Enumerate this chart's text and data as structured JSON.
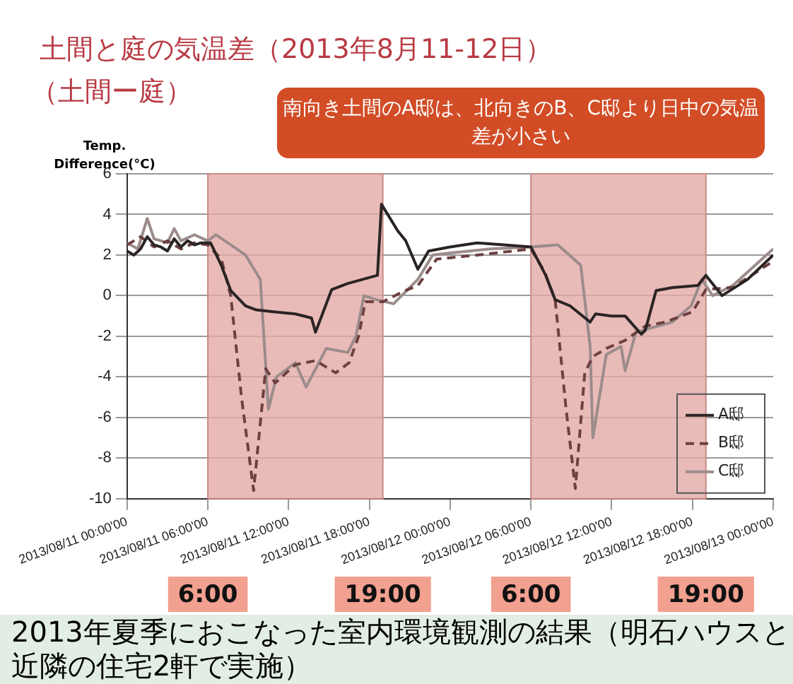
{
  "chart_data": {
    "type": "line",
    "title": "土間と庭の気温差（2013年8月11-12日）",
    "subtitle": "（土間ー庭）",
    "ylabel": "Temp. Difference(°C)",
    "xlim": [
      "2013-08-11T00:00",
      "2013-08-13T00:00"
    ],
    "xticks": [
      {
        "value": "2013-08-11T00:00",
        "label": "2013/08/11 00:00'00"
      },
      {
        "value": "2013-08-11T06:00",
        "label": "2013/08/11 06:00'00"
      },
      {
        "value": "2013-08-11T12:00",
        "label": "2013/08/11 12:00'00"
      },
      {
        "value": "2013-08-11T18:00",
        "label": "2013/08/11 18:00'00"
      },
      {
        "value": "2013-08-12T00:00",
        "label": "2013/08/12 00:00'00"
      },
      {
        "value": "2013-08-12T06:00",
        "label": "2013/08/12 06:00'00"
      },
      {
        "value": "2013-08-12T12:00",
        "label": "2013/08/12 12:00'00"
      },
      {
        "value": "2013-08-12T18:00",
        "label": "2013/08/12 18:00'00"
      },
      {
        "value": "2013-08-13T00:00",
        "label": "2013/08/13 00:00'00"
      }
    ],
    "ylim": [
      -10,
      6
    ],
    "yticks": [
      -10,
      -8,
      -6,
      -4,
      -2,
      0,
      2,
      4,
      6
    ],
    "grid": "y",
    "legend": "bottom right",
    "marker": "none",
    "series": [
      {
        "name": "A邸",
        "color": "#2b2424",
        "line_style": "solid",
        "x": [
          "2013-08-11T00:00",
          "2013-08-11T00:30",
          "2013-08-11T01:00",
          "2013-08-11T01:30",
          "2013-08-11T02:00",
          "2013-08-11T02:30",
          "2013-08-11T03:00",
          "2013-08-11T03:30",
          "2013-08-11T04:00",
          "2013-08-11T04:30",
          "2013-08-11T05:00",
          "2013-08-11T05:30",
          "2013-08-11T06:12",
          "2013-08-11T07:00",
          "2013-08-11T07:42",
          "2013-08-11T08:48",
          "2013-08-11T09:36",
          "2013-08-11T11:00",
          "2013-08-11T12:30",
          "2013-08-11T13:42",
          "2013-08-11T14:00",
          "2013-08-11T15:12",
          "2013-08-11T16:24",
          "2013-08-11T17:30",
          "2013-08-11T18:36",
          "2013-08-11T18:54",
          "2013-08-11T20:06",
          "2013-08-11T20:42",
          "2013-08-11T21:36",
          "2013-08-11T22:24",
          "2013-08-12T00:00",
          "2013-08-12T02:00",
          "2013-08-12T04:00",
          "2013-08-12T06:00",
          "2013-08-12T07:06",
          "2013-08-12T07:48",
          "2013-08-12T08:54",
          "2013-08-12T10:24",
          "2013-08-12T10:48",
          "2013-08-12T12:00",
          "2013-08-12T13:00",
          "2013-08-12T14:12",
          "2013-08-12T14:30",
          "2013-08-12T15:18",
          "2013-08-12T16:30",
          "2013-08-12T18:24",
          "2013-08-12T19:00",
          "2013-08-12T20:12",
          "2013-08-12T22:06",
          "2013-08-13T00:00"
        ],
        "values": [
          2.2,
          2.0,
          2.3,
          2.9,
          2.5,
          2.4,
          2.2,
          2.8,
          2.4,
          2.7,
          2.5,
          2.6,
          2.6,
          1.5,
          0.25,
          -0.5,
          -0.7,
          -0.8,
          -0.9,
          -1.1,
          -1.8,
          0.3,
          0.6,
          0.8,
          1.0,
          4.5,
          3.2,
          2.7,
          1.3,
          2.2,
          2.4,
          2.6,
          2.5,
          2.4,
          1.0,
          -0.2,
          -0.5,
          -1.3,
          -0.9,
          -1.0,
          -1.0,
          -1.9,
          -1.7,
          0.25,
          0.4,
          0.5,
          1.0,
          0,
          0.8,
          2.0
        ]
      },
      {
        "name": "B邸",
        "color": "#6e4040",
        "line_style": "dashed",
        "x": [
          "2013-08-11T00:00",
          "2013-08-11T01:00",
          "2013-08-11T02:00",
          "2013-08-11T03:00",
          "2013-08-11T04:00",
          "2013-08-11T05:00",
          "2013-08-11T06:00",
          "2013-08-11T07:00",
          "2013-08-11T07:42",
          "2013-08-11T08:30",
          "2013-08-11T09:24",
          "2013-08-11T10:18",
          "2013-08-11T11:00",
          "2013-08-11T12:30",
          "2013-08-11T14:00",
          "2013-08-11T15:30",
          "2013-08-11T16:30",
          "2013-08-11T17:12",
          "2013-08-11T17:42",
          "2013-08-11T19:00",
          "2013-08-11T20:30",
          "2013-08-11T21:36",
          "2013-08-11T23:00",
          "2013-08-12T02:00",
          "2013-08-12T06:00",
          "2013-08-12T07:00",
          "2013-08-12T07:48",
          "2013-08-12T08:36",
          "2013-08-12T09:18",
          "2013-08-12T10:00",
          "2013-08-12T10:36",
          "2013-08-12T11:36",
          "2013-08-12T13:00",
          "2013-08-12T14:30",
          "2013-08-12T16:00",
          "2013-08-12T18:00",
          "2013-08-12T19:00",
          "2013-08-12T21:00",
          "2013-08-13T00:00"
        ],
        "values": [
          2.5,
          2.9,
          2.4,
          2.7,
          2.3,
          2.6,
          2.5,
          1.8,
          0,
          -5,
          -9.6,
          -3.6,
          -4.3,
          -3.4,
          -3.2,
          -3.8,
          -3.3,
          -2.0,
          -0.3,
          -0.3,
          0.2,
          0.5,
          1.8,
          2.0,
          2.3,
          1.2,
          -0.2,
          -5.5,
          -9.5,
          -3.8,
          -3.0,
          -2.6,
          -2.2,
          -1.5,
          -1.3,
          -0.8,
          0.3,
          0.4,
          1.7
        ]
      },
      {
        "name": "C邸",
        "color": "#9c8c8c",
        "line_style": "solid",
        "x": [
          "2013-08-11T00:00",
          "2013-08-11T00:48",
          "2013-08-11T01:30",
          "2013-08-11T02:00",
          "2013-08-11T03:00",
          "2013-08-11T03:30",
          "2013-08-11T04:00",
          "2013-08-11T05:00",
          "2013-08-11T06:00",
          "2013-08-11T06:36",
          "2013-08-11T08:48",
          "2013-08-11T09:54",
          "2013-08-11T10:30",
          "2013-08-11T11:06",
          "2013-08-11T12:30",
          "2013-08-11T13:18",
          "2013-08-11T14:48",
          "2013-08-11T16:24",
          "2013-08-11T17:00",
          "2013-08-11T17:36",
          "2013-08-11T18:30",
          "2013-08-11T19:48",
          "2013-08-11T21:36",
          "2013-08-11T22:42",
          "2013-08-12T00:00",
          "2013-08-12T03:00",
          "2013-08-12T06:00",
          "2013-08-12T08:00",
          "2013-08-12T09:42",
          "2013-08-12T10:24",
          "2013-08-12T10:36",
          "2013-08-12T11:36",
          "2013-08-12T12:42",
          "2013-08-12T13:00",
          "2013-08-12T13:48",
          "2013-08-12T16:30",
          "2013-08-12T17:54",
          "2013-08-12T18:42",
          "2013-08-12T19:30",
          "2013-08-12T21:00",
          "2013-08-13T00:00"
        ],
        "values": [
          2.6,
          2.3,
          3.8,
          2.8,
          2.6,
          3.3,
          2.7,
          3.0,
          2.7,
          3.0,
          2.0,
          0.8,
          -5.6,
          -4.0,
          -3.3,
          -4.5,
          -2.6,
          -2.8,
          -2.0,
          0,
          -0.2,
          -0.4,
          0.8,
          2.0,
          2.1,
          2.3,
          2.4,
          2.5,
          1.5,
          -2.5,
          -7.0,
          -2.9,
          -2.5,
          -3.7,
          -1.8,
          -1.3,
          -0.5,
          0.8,
          0.0,
          0.5,
          2.3
        ]
      }
    ],
    "bands": [
      {
        "axis": "x",
        "from": "2013-08-11T06:00",
        "to": "2013-08-11T19:00",
        "color": "#e4aaa6"
      },
      {
        "axis": "x",
        "from": "2013-08-12T06:00",
        "to": "2013-08-12T19:00",
        "color": "#e4aaa6"
      }
    ],
    "annotations": [
      "南向き土間のA邸は、北向きのB、C邸より日中の気温差が小さい",
      "2013年夏季におこなった室内環境観測の結果（明石ハウスと近隣の住宅2軒で実施）",
      "6:00",
      "19:00",
      "6:00",
      "19:00"
    ]
  }
}
